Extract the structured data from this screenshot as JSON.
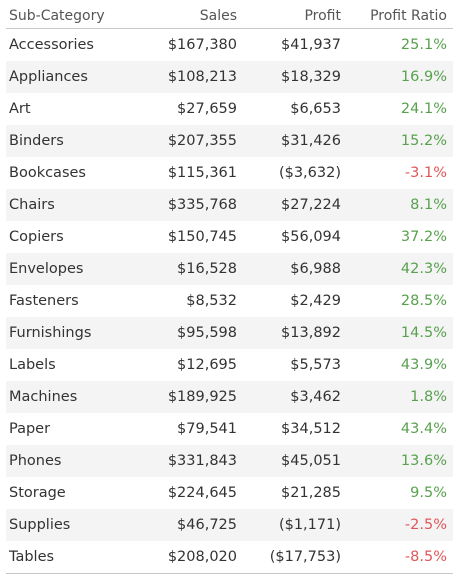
{
  "chart_data": {
    "type": "table",
    "columns": [
      "Sub-Category",
      "Sales",
      "Profit",
      "Profit Ratio"
    ],
    "rows": [
      {
        "name": "Accessories",
        "sales": "$167,380",
        "profit": "$41,937",
        "ratio": "25.1%"
      },
      {
        "name": "Appliances",
        "sales": "$108,213",
        "profit": "$18,329",
        "ratio": "16.9%"
      },
      {
        "name": "Art",
        "sales": "$27,659",
        "profit": "$6,653",
        "ratio": "24.1%"
      },
      {
        "name": "Binders",
        "sales": "$207,355",
        "profit": "$31,426",
        "ratio": "15.2%"
      },
      {
        "name": "Bookcases",
        "sales": "$115,361",
        "profit": "($3,632)",
        "ratio": "-3.1%"
      },
      {
        "name": "Chairs",
        "sales": "$335,768",
        "profit": "$27,224",
        "ratio": "8.1%"
      },
      {
        "name": "Copiers",
        "sales": "$150,745",
        "profit": "$56,094",
        "ratio": "37.2%"
      },
      {
        "name": "Envelopes",
        "sales": "$16,528",
        "profit": "$6,988",
        "ratio": "42.3%"
      },
      {
        "name": "Fasteners",
        "sales": "$8,532",
        "profit": "$2,429",
        "ratio": "28.5%"
      },
      {
        "name": "Furnishings",
        "sales": "$95,598",
        "profit": "$13,892",
        "ratio": "14.5%"
      },
      {
        "name": "Labels",
        "sales": "$12,695",
        "profit": "$5,573",
        "ratio": "43.9%"
      },
      {
        "name": "Machines",
        "sales": "$189,925",
        "profit": "$3,462",
        "ratio": "1.8%"
      },
      {
        "name": "Paper",
        "sales": "$79,541",
        "profit": "$34,512",
        "ratio": "43.4%"
      },
      {
        "name": "Phones",
        "sales": "$331,843",
        "profit": "$45,051",
        "ratio": "13.6%"
      },
      {
        "name": "Storage",
        "sales": "$224,645",
        "profit": "$21,285",
        "ratio": "9.5%"
      },
      {
        "name": "Supplies",
        "sales": "$46,725",
        "profit": "($1,171)",
        "ratio": "-2.5%"
      },
      {
        "name": "Tables",
        "sales": "$208,020",
        "profit": "($17,753)",
        "ratio": "-8.5%"
      }
    ],
    "colors": {
      "positive_ratio": "#59a14f",
      "negative_ratio": "#e15759",
      "row_shading": "#f4f4f4"
    }
  }
}
